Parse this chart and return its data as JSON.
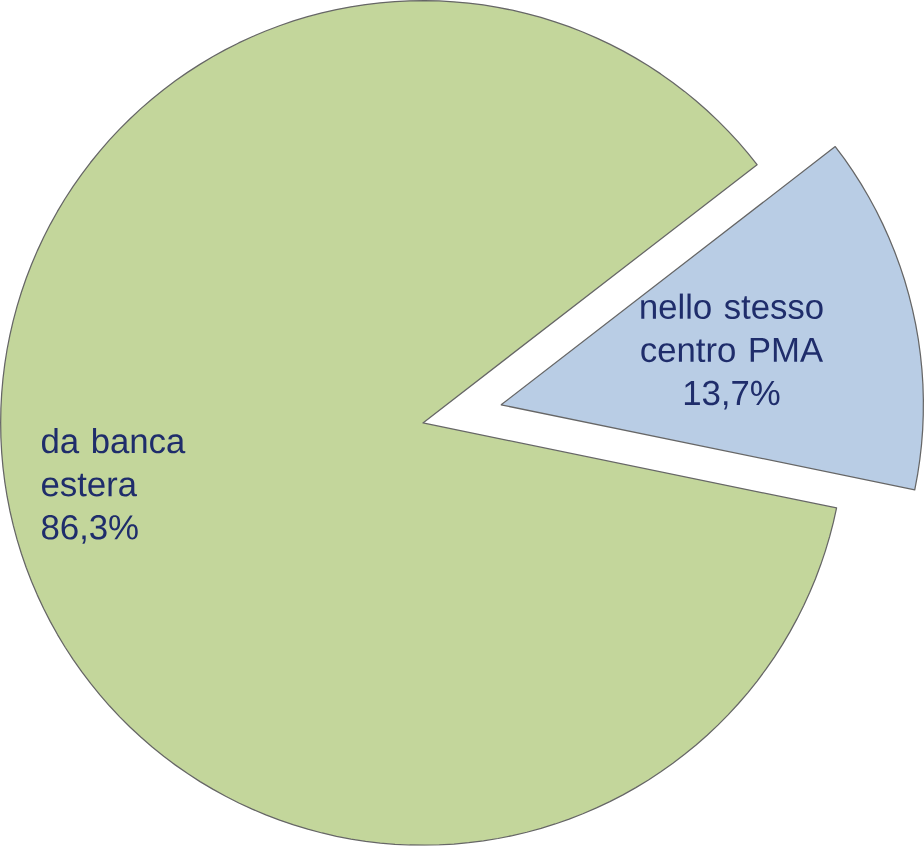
{
  "chart_data": {
    "type": "pie",
    "categories": [
      "da banca estera",
      "nello stesso centro PMA"
    ],
    "values": [
      86.3,
      13.7
    ],
    "value_labels": [
      "86,3%",
      "13,7%"
    ],
    "colors": [
      "#c3d69b",
      "#b9cde5"
    ]
  }
}
